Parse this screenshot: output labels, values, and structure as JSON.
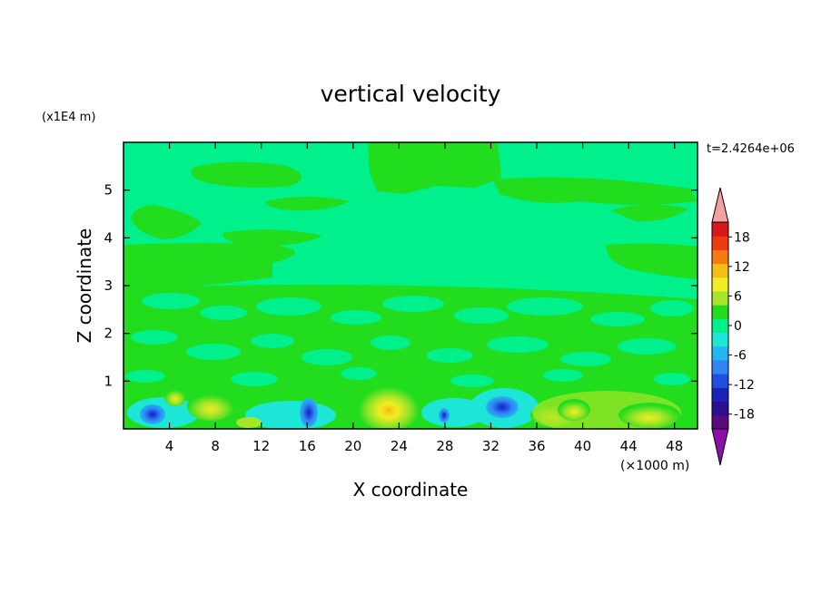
{
  "chart_data": {
    "type": "heatmap",
    "title": "vertical velocity",
    "xlabel": "X coordinate",
    "ylabel": "Z coordinate",
    "x_units": "(×1000 m)",
    "y_units": "(x1E4 m)",
    "time_label": "t=2.4264e+06",
    "xlim": [
      0,
      50
    ],
    "ylim": [
      0,
      6
    ],
    "x_ticks": [
      4,
      8,
      12,
      16,
      20,
      24,
      28,
      32,
      36,
      40,
      44,
      48
    ],
    "y_ticks": [
      1,
      2,
      3,
      4,
      5
    ],
    "grid": false,
    "colorbar": {
      "placement": "right",
      "tick_labels": [
        "18",
        "12",
        "6",
        "0",
        "-6",
        "-12",
        "-18"
      ],
      "levels": [
        -21,
        -18,
        -15,
        -12,
        -9,
        -6,
        -3,
        0,
        3,
        6,
        9,
        12,
        15,
        18,
        21
      ],
      "colors": [
        "#5a0a7a",
        "#2b0f8c",
        "#1a22b8",
        "#1f4fe0",
        "#2f86f2",
        "#25b6f2",
        "#1de6d6",
        "#00f08c",
        "#22dc1e",
        "#a6e628",
        "#f2ec22",
        "#f5be12",
        "#f57a10",
        "#ee3a12",
        "#d81818"
      ],
      "under_color": "#8a10a8",
      "over_color": "#f5a0a0"
    },
    "features": [
      {
        "x": 3.0,
        "z": 0.25,
        "value": -12
      },
      {
        "x": 16.5,
        "z": 0.3,
        "value": -10
      },
      {
        "x": 23.0,
        "z": 0.4,
        "value": 8
      },
      {
        "x": 28.0,
        "z": 0.25,
        "value": -8
      },
      {
        "x": 33.0,
        "z": 0.45,
        "value": -10
      },
      {
        "x": 40.0,
        "z": 0.35,
        "value": 3
      },
      {
        "x": 45.0,
        "z": 0.3,
        "value": 4
      }
    ]
  }
}
